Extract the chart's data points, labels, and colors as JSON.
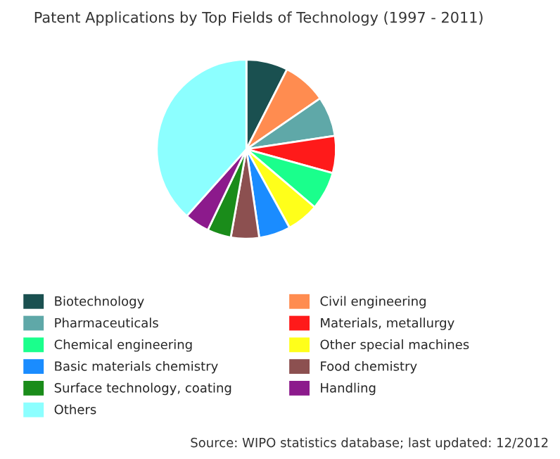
{
  "chart_data": {
    "type": "pie",
    "title": "Patent Applications by Top Fields of Technology (1997 - 2011)",
    "categories": [
      "Biotechnology",
      "Civil engineering",
      "Pharmaceuticals",
      "Materials, metallurgy",
      "Chemical engineering",
      "Other special machines",
      "Basic materials chemistry",
      "Food chemistry",
      "Surface technology, coating",
      "Handling",
      "Others"
    ],
    "values": [
      7.5,
      7.9,
      7.2,
      6.7,
      6.9,
      5.8,
      5.7,
      5.1,
      4.3,
      4.5,
      38.4
    ],
    "colors": [
      "#1a5050",
      "#ff8c50",
      "#5fa8a8",
      "#ff1a1a",
      "#1aff8c",
      "#ffff1a",
      "#1a8cff",
      "#8c5050",
      "#1a8c1a",
      "#8c1a8c",
      "#8cffff"
    ],
    "legend": "bottom",
    "annotations": [
      "Source: WIPO statistics database; last updated: 12/2012"
    ]
  }
}
